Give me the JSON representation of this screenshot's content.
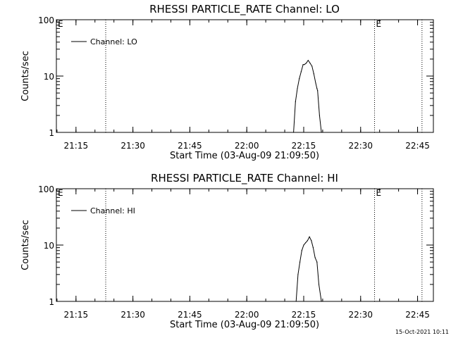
{
  "timestamp": "15-Oct-2021 10:11",
  "chart_data": [
    {
      "type": "line",
      "title": "RHESSI PARTICLE_RATE Channel: LO",
      "xlabel": "Start Time (03-Aug-09 21:09:50)",
      "ylabel": "Counts/sec",
      "yscale": "log",
      "xlim": [
        "21:09:50",
        "22:49:10"
      ],
      "ylim": [
        1,
        100
      ],
      "xticks": [
        "21:15",
        "21:30",
        "21:45",
        "22:00",
        "22:15",
        "22:30",
        "22:45"
      ],
      "yticks": [
        "1",
        "10",
        "100"
      ],
      "legend": {
        "placement": "top-left",
        "entries": [
          "Channel: LO"
        ]
      },
      "markers": [
        {
          "time": "21:09:50",
          "label": "E"
        },
        {
          "time": "21:22:50",
          "label": ""
        },
        {
          "time": "22:33:40",
          "label": "E"
        },
        {
          "time": "22:46:10",
          "label": ""
        }
      ],
      "series": [
        {
          "name": "Channel: LO",
          "x": [
            "22:12:20",
            "22:12:50",
            "22:13:20",
            "22:13:50",
            "22:14:20",
            "22:14:50",
            "22:15:10",
            "22:15:40",
            "22:16:10",
            "22:16:40",
            "22:17:10",
            "22:17:40",
            "22:18:10",
            "22:18:30",
            "22:18:40",
            "22:19:10",
            "22:19:40"
          ],
          "values": [
            1,
            3.5,
            6,
            9,
            12,
            16,
            16,
            17,
            19,
            17,
            15,
            11,
            7.5,
            6,
            5.5,
            2,
            1
          ]
        }
      ]
    },
    {
      "type": "line",
      "title": "RHESSI PARTICLE_RATE Channel: HI",
      "xlabel": "Start Time (03-Aug-09 21:09:50)",
      "ylabel": "Counts/sec",
      "yscale": "log",
      "xlim": [
        "21:09:50",
        "22:49:10"
      ],
      "ylim": [
        1,
        100
      ],
      "xticks": [
        "21:15",
        "21:30",
        "21:45",
        "22:00",
        "22:15",
        "22:30",
        "22:45"
      ],
      "yticks": [
        "1",
        "10",
        "100"
      ],
      "legend": {
        "placement": "top-left",
        "entries": [
          "Channel: HI"
        ]
      },
      "markers": [
        {
          "time": "21:09:50",
          "label": "E"
        },
        {
          "time": "21:22:50",
          "label": ""
        },
        {
          "time": "22:33:40",
          "label": "E"
        },
        {
          "time": "22:46:10",
          "label": ""
        }
      ],
      "series": [
        {
          "name": "Channel: HI",
          "x": [
            "22:13:00",
            "22:13:30",
            "22:14:00",
            "22:14:30",
            "22:15:00",
            "22:15:30",
            "22:16:00",
            "22:16:30",
            "22:17:00",
            "22:17:30",
            "22:18:00",
            "22:18:30",
            "22:19:00",
            "22:19:40"
          ],
          "values": [
            1,
            3,
            5,
            8,
            10,
            11,
            12,
            14,
            12,
            9,
            6,
            5,
            2,
            1
          ]
        }
      ]
    }
  ]
}
